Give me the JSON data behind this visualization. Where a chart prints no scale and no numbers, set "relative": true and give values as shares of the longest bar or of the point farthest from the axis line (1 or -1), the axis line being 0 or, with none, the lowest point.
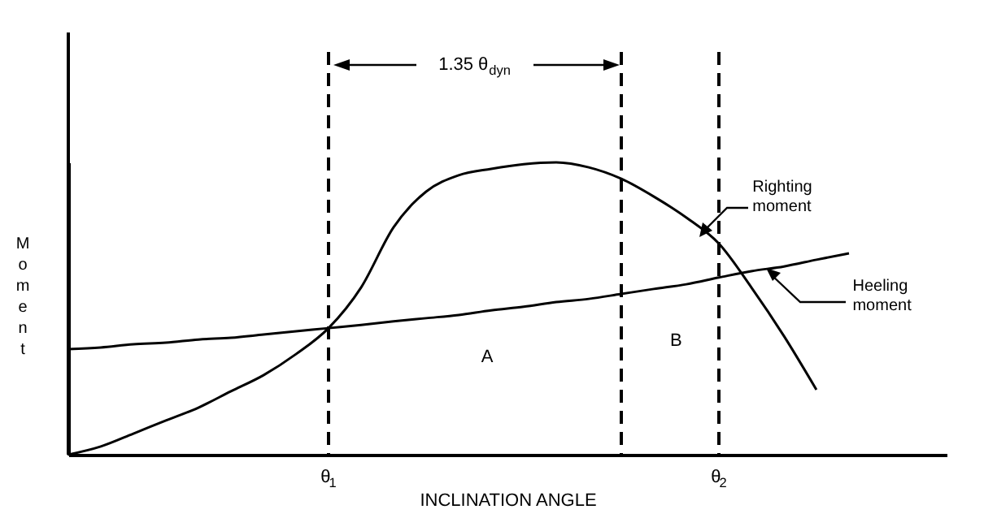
{
  "chart_data": {
    "type": "line",
    "relative": true,
    "xlabel": "INCLINATION ANGLE",
    "ylabel": "Moment",
    "tick_labels": "x",
    "grid": "x",
    "marker": "none",
    "line_style": "solid",
    "categories": [
      null,
      null,
      null,
      null,
      null,
      null,
      null,
      null,
      "θ$_{1}$",
      null,
      null,
      null,
      null,
      null,
      null,
      null,
      null,
      null,
      null,
      null,
      "θ$_{2}$",
      null,
      null,
      null,
      null,
      null,
      null,
      null
    ],
    "series": [
      {
        "name": "Righting moment",
        "color": "#000000",
        "values": [
          0,
          0.028,
          0.072,
          0.117,
          0.161,
          0.217,
          0.272,
          0.344,
          0.433,
          0.572,
          0.778,
          0.9,
          0.956,
          0.978,
          0.994,
          1,
          0.983,
          0.944,
          0.883,
          0.811,
          0.722,
          0.572,
          0.406,
          0.222,
          null,
          null,
          null,
          null
        ]
      },
      {
        "name": "Heeling moment",
        "color": "#000000",
        "values": [
          0.361,
          0.367,
          0.378,
          0.383,
          0.394,
          0.4,
          0.411,
          0.422,
          0.433,
          0.444,
          0.456,
          0.467,
          0.478,
          0.494,
          0.506,
          0.522,
          0.533,
          0.55,
          0.567,
          0.583,
          0.606,
          0.628,
          0.644,
          0.667,
          0.689,
          null,
          null,
          null
        ]
      }
    ],
    "annotations": [
      "1.35 θ$_{dyn}$",
      "A",
      "B"
    ]
  }
}
